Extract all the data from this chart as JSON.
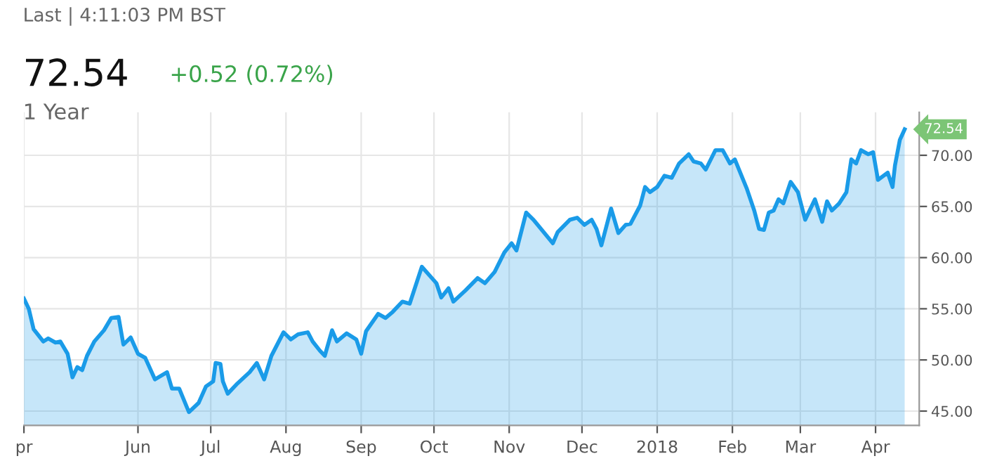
{
  "chart_data": {
    "type": "area",
    "title": "72.54",
    "annotations": [
      "Last | 4:11:03 PM BST",
      "+0.52 (0.72%)",
      "1 Year",
      {
        "text": "72.54",
        "x": "2018-04-13",
        "y": 72.54
      }
    ],
    "x": [
      "2017-04-15",
      "2017-04-17",
      "2017-04-19",
      "2017-04-23",
      "2017-04-25",
      "2017-04-28",
      "2017-04-30",
      "2017-05-03",
      "2017-05-05",
      "2017-05-07",
      "2017-05-09",
      "2017-05-11",
      "2017-05-14",
      "2017-05-18",
      "2017-05-21",
      "2017-05-24",
      "2017-05-26",
      "2017-05-29",
      "2017-06-01",
      "2017-06-04",
      "2017-06-08",
      "2017-06-13",
      "2017-06-15",
      "2017-06-18",
      "2017-06-22",
      "2017-06-26",
      "2017-06-29",
      "2017-07-02",
      "2017-07-03",
      "2017-07-05",
      "2017-07-06",
      "2017-07-08",
      "2017-07-12",
      "2017-07-17",
      "2017-07-20",
      "2017-07-23",
      "2017-07-26",
      "2017-07-31",
      "2017-08-03",
      "2017-08-06",
      "2017-08-10",
      "2017-08-12",
      "2017-08-15",
      "2017-08-17",
      "2017-08-20",
      "2017-08-22",
      "2017-08-26",
      "2017-08-30",
      "2017-09-01",
      "2017-09-03",
      "2017-09-08",
      "2017-09-11",
      "2017-09-14",
      "2017-09-18",
      "2017-09-21",
      "2017-09-26",
      "2017-10-02",
      "2017-10-04",
      "2017-10-07",
      "2017-10-09",
      "2017-10-14",
      "2017-10-19",
      "2017-10-22",
      "2017-10-26",
      "2017-10-30",
      "2017-11-02",
      "2017-11-04",
      "2017-11-08",
      "2017-11-11",
      "2017-11-19",
      "2017-11-21",
      "2017-11-26",
      "2017-11-29",
      "2017-12-02",
      "2017-12-05",
      "2017-12-07",
      "2017-12-09",
      "2017-12-13",
      "2017-12-16",
      "2017-12-19",
      "2017-12-21",
      "2017-12-25",
      "2017-12-27",
      "2017-12-29",
      "2018-01-01",
      "2018-01-04",
      "2018-01-07",
      "2018-01-10",
      "2018-01-14",
      "2018-01-16",
      "2018-01-19",
      "2018-01-21",
      "2018-01-25",
      "2018-01-28",
      "2018-01-31",
      "2018-02-02",
      "2018-02-07",
      "2018-02-10",
      "2018-02-12",
      "2018-02-14",
      "2018-02-16",
      "2018-02-18",
      "2018-02-20",
      "2018-02-22",
      "2018-02-25",
      "2018-02-28",
      "2018-03-03",
      "2018-03-07",
      "2018-03-10",
      "2018-03-12",
      "2018-03-14",
      "2018-03-17",
      "2018-03-20",
      "2018-03-22",
      "2018-03-24",
      "2018-03-26",
      "2018-03-29",
      "2018-03-31",
      "2018-04-02",
      "2018-04-06",
      "2018-04-08",
      "2018-04-09",
      "2018-04-11",
      "2018-04-13"
    ],
    "series": [
      {
        "color": "#1a9be8",
        "values": [
          56.0,
          55.0,
          53.0,
          51.8,
          52.1,
          51.7,
          51.8,
          50.6,
          48.3,
          49.3,
          49.0,
          50.4,
          51.8,
          52.9,
          54.1,
          54.2,
          51.5,
          52.2,
          50.6,
          50.2,
          48.1,
          48.8,
          47.2,
          47.2,
          44.9,
          45.8,
          47.4,
          47.9,
          49.7,
          49.6,
          47.9,
          46.7,
          47.7,
          48.8,
          49.7,
          48.1,
          50.4,
          52.7,
          52.0,
          52.5,
          52.7,
          51.8,
          50.9,
          50.4,
          52.9,
          51.8,
          52.6,
          52.0,
          50.6,
          52.8,
          54.5,
          54.1,
          54.7,
          55.7,
          55.5,
          59.1,
          57.5,
          56.1,
          57.0,
          55.7,
          56.8,
          58.0,
          57.5,
          58.6,
          60.5,
          61.4,
          60.7,
          64.4,
          63.7,
          61.4,
          62.5,
          63.7,
          63.9,
          63.2,
          63.7,
          62.8,
          61.2,
          64.8,
          62.4,
          63.2,
          63.3,
          65.1,
          66.9,
          66.4,
          66.9,
          68.0,
          67.8,
          69.2,
          70.1,
          69.4,
          69.2,
          68.6,
          70.5,
          70.5,
          69.2,
          69.6,
          66.7,
          64.6,
          62.8,
          62.7,
          64.4,
          64.6,
          65.7,
          65.3,
          67.4,
          66.4,
          63.7,
          65.7,
          63.5,
          65.5,
          64.6,
          65.3,
          66.4,
          69.6,
          69.2,
          70.5,
          70.1,
          70.3,
          67.6,
          68.3,
          66.9,
          69.0,
          71.5,
          72.54
        ]
      }
    ],
    "xlim": [
      "2017-04-15",
      "2018-04-19"
    ],
    "xticks": [
      {
        "value": "2017-04-15",
        "label": "pr"
      },
      {
        "value": "2017-06-01",
        "label": "Jun"
      },
      {
        "value": "2017-07-01",
        "label": "Jul"
      },
      {
        "value": "2017-08-01",
        "label": "Aug"
      },
      {
        "value": "2017-09-01",
        "label": "Sep"
      },
      {
        "value": "2017-10-01",
        "label": "Oct"
      },
      {
        "value": "2017-11-01",
        "label": "Nov"
      },
      {
        "value": "2017-12-01",
        "label": "Dec"
      },
      {
        "value": "2018-01-01",
        "label": "2018"
      },
      {
        "value": "2018-02-01",
        "label": "Feb"
      },
      {
        "value": "2018-03-01",
        "label": "Mar"
      },
      {
        "value": "2018-04-01",
        "label": "Apr"
      }
    ],
    "ylim": [
      43.6,
      74.2
    ],
    "yticks": [
      {
        "value": 45,
        "label": "45.00"
      },
      {
        "value": 50,
        "label": "50.00"
      },
      {
        "value": 55,
        "label": "55.00"
      },
      {
        "value": 60,
        "label": "60.00"
      },
      {
        "value": 65,
        "label": "65.00"
      },
      {
        "value": 70,
        "label": "70.00"
      }
    ],
    "grid": true,
    "legend": false,
    "marker": "none",
    "line_style": "solid"
  }
}
